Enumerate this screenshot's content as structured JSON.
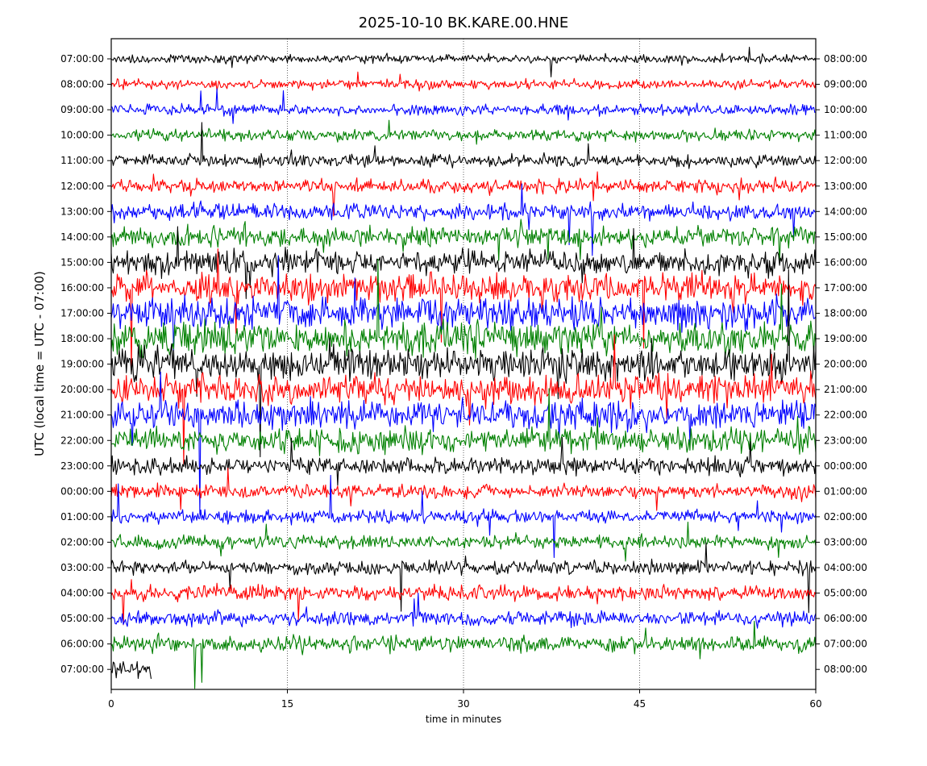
{
  "chart_data": {
    "type": "line",
    "title": "2025-10-10 BK.KARE.00.HNE",
    "xlabel": "time in minutes",
    "ylabel": "UTC (local time = UTC - 07:00)",
    "xlim": [
      0,
      60
    ],
    "x_ticks": [
      "0",
      "15",
      "30",
      "45",
      "60"
    ],
    "x_tick_values": [
      0,
      15,
      30,
      45,
      60
    ],
    "y_ticks_left": [
      "07:00:00",
      "08:00:00",
      "09:00:00",
      "10:00:00",
      "11:00:00",
      "12:00:00",
      "13:00:00",
      "14:00:00",
      "15:00:00",
      "16:00:00",
      "17:00:00",
      "18:00:00",
      "19:00:00",
      "20:00:00",
      "21:00:00",
      "22:00:00",
      "23:00:00",
      "00:00:00",
      "01:00:00",
      "02:00:00",
      "03:00:00",
      "04:00:00",
      "05:00:00",
      "06:00:00",
      "07:00:00"
    ],
    "y_ticks_right": [
      "08:00:00",
      "09:00:00",
      "10:00:00",
      "11:00:00",
      "12:00:00",
      "13:00:00",
      "14:00:00",
      "15:00:00",
      "16:00:00",
      "17:00:00",
      "18:00:00",
      "19:00:00",
      "20:00:00",
      "21:00:00",
      "22:00:00",
      "23:00:00",
      "00:00:00",
      "01:00:00",
      "02:00:00",
      "03:00:00",
      "04:00:00",
      "05:00:00",
      "06:00:00",
      "07:00:00",
      "08:00:00"
    ],
    "trace_colors": [
      "#000000",
      "#ff0000",
      "#0000ff",
      "#008000"
    ],
    "trace_amplitude": [
      1.0,
      1.1,
      1.2,
      1.3,
      1.4,
      1.6,
      1.9,
      2.3,
      2.8,
      3.3,
      3.6,
      3.8,
      3.8,
      3.6,
      3.3,
      2.8,
      2.0,
      1.6,
      1.5,
      1.5,
      1.6,
      1.7,
      1.7,
      1.9,
      1.9
    ],
    "trace_duration_minutes": [
      60,
      60,
      60,
      60,
      60,
      60,
      60,
      60,
      60,
      60,
      60,
      60,
      60,
      60,
      60,
      60,
      60,
      60,
      60,
      60,
      60,
      60,
      60,
      60,
      3.4
    ],
    "grid": "dotted vertical at 15-minute ticks"
  }
}
